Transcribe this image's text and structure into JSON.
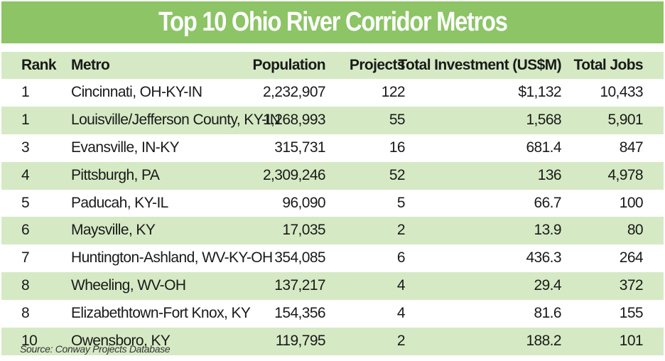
{
  "title": "Top 10 Ohio River Corridor Metros",
  "columns": {
    "rank": "Rank",
    "metro": "Metro",
    "population": "Population",
    "projects": "Projects",
    "investment": "Total Investment (US$M)",
    "jobs": "Total Jobs"
  },
  "rows": [
    {
      "rank": "1",
      "metro": "Cincinnati, OH-KY-IN",
      "population": "2,232,907",
      "projects": "122",
      "investment": "$1,132",
      "jobs": "10,433"
    },
    {
      "rank": "1",
      "metro": "Louisville/Jefferson County, KY-IN",
      "population": "1,268,993",
      "projects": "55",
      "investment": "1,568",
      "jobs": "5,901"
    },
    {
      "rank": "3",
      "metro": "Evansville, IN-KY",
      "population": "315,731",
      "projects": "16",
      "investment": "681.4",
      "jobs": "847"
    },
    {
      "rank": "4",
      "metro": "Pittsburgh, PA",
      "population": "2,309,246",
      "projects": "52",
      "investment": "136",
      "jobs": "4,978"
    },
    {
      "rank": "5",
      "metro": "Paducah, KY-IL",
      "population": "96,090",
      "projects": "5",
      "investment": "66.7",
      "jobs": "100"
    },
    {
      "rank": "6",
      "metro": "Maysville, KY",
      "population": "17,035",
      "projects": "2",
      "investment": "13.9",
      "jobs": "80"
    },
    {
      "rank": "7",
      "metro": "Huntington-Ashland, WV-KY-OH",
      "population": "354,085",
      "projects": "6",
      "investment": "436.3",
      "jobs": "264"
    },
    {
      "rank": "8",
      "metro": "Wheeling, WV-OH",
      "population": "137,217",
      "projects": "4",
      "investment": "29.4",
      "jobs": "372"
    },
    {
      "rank": "8",
      "metro": "Elizabethtown-Fort Knox, KY",
      "population": "154,356",
      "projects": "4",
      "investment": "81.6",
      "jobs": "155"
    },
    {
      "rank": "10",
      "metro": "Owensboro, KY",
      "population": "119,795",
      "projects": "2",
      "investment": "188.2",
      "jobs": "101"
    }
  ],
  "source": "Source: Conway Projects Database",
  "colors": {
    "title_bar": "#8cc466",
    "shaded_row": "#d5eac4"
  }
}
